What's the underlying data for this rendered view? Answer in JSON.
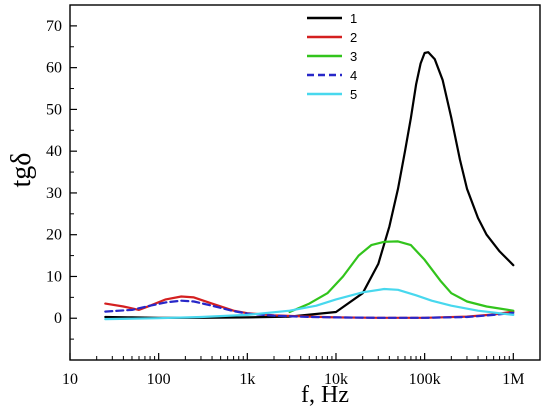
{
  "chart_data": {
    "type": "line",
    "xlabel": "f, Hz",
    "ylabel": "tgδ",
    "x_scale": "log",
    "xlim": [
      10,
      2000000
    ],
    "ylim": [
      -10,
      75
    ],
    "x_ticks": [
      {
        "value": 10,
        "label": "10"
      },
      {
        "value": 100,
        "label": "100"
      },
      {
        "value": 1000,
        "label": "1k"
      },
      {
        "value": 10000,
        "label": "10k"
      },
      {
        "value": 100000,
        "label": "100k"
      },
      {
        "value": 1000000,
        "label": "1M"
      }
    ],
    "y_ticks": [
      0,
      10,
      20,
      30,
      40,
      50,
      60,
      70
    ],
    "grid": false,
    "legend_position": "top-right",
    "series": [
      {
        "name": "1",
        "color": "#000000",
        "dash": false,
        "points": [
          [
            25,
            0.3
          ],
          [
            50,
            0.2
          ],
          [
            100,
            0.1
          ],
          [
            300,
            0.1
          ],
          [
            1000,
            0.2
          ],
          [
            3000,
            0.4
          ],
          [
            10000,
            1.5
          ],
          [
            20000,
            6
          ],
          [
            30000,
            13
          ],
          [
            40000,
            22
          ],
          [
            50000,
            31
          ],
          [
            60000,
            40
          ],
          [
            70000,
            48
          ],
          [
            80000,
            56
          ],
          [
            90000,
            61
          ],
          [
            100000,
            63.5
          ],
          [
            110000,
            63.7
          ],
          [
            130000,
            62
          ],
          [
            160000,
            57
          ],
          [
            200000,
            48
          ],
          [
            250000,
            38
          ],
          [
            300000,
            31
          ],
          [
            400000,
            24
          ],
          [
            500000,
            20
          ],
          [
            700000,
            16
          ],
          [
            1000000,
            12.7
          ]
        ]
      },
      {
        "name": "2",
        "color": "#d42020",
        "dash": false,
        "points": [
          [
            25,
            3.5
          ],
          [
            40,
            2.8
          ],
          [
            60,
            2.0
          ],
          [
            80,
            3.0
          ],
          [
            120,
            4.5
          ],
          [
            180,
            5.2
          ],
          [
            250,
            5.0
          ],
          [
            400,
            3.5
          ],
          [
            700,
            1.8
          ],
          [
            1000,
            1.2
          ],
          [
            2000,
            0.7
          ],
          [
            5000,
            0.4
          ],
          [
            10000,
            0.2
          ],
          [
            30000,
            0.1
          ],
          [
            100000,
            0.1
          ],
          [
            300000,
            0.4
          ],
          [
            600000,
            0.9
          ],
          [
            1000000,
            1.6
          ]
        ]
      },
      {
        "name": "3",
        "color": "#32c41c",
        "dash": false,
        "points": [
          [
            3000,
            1.5
          ],
          [
            5000,
            3.5
          ],
          [
            8000,
            6
          ],
          [
            12000,
            10
          ],
          [
            18000,
            15
          ],
          [
            25000,
            17.5
          ],
          [
            35000,
            18.3
          ],
          [
            50000,
            18.4
          ],
          [
            70000,
            17.5
          ],
          [
            100000,
            14
          ],
          [
            150000,
            9
          ],
          [
            200000,
            6
          ],
          [
            300000,
            4
          ],
          [
            500000,
            2.8
          ],
          [
            1000000,
            1.8
          ]
        ]
      },
      {
        "name": "4",
        "color": "#2727c8",
        "dash": true,
        "points": [
          [
            25,
            1.6
          ],
          [
            50,
            2.0
          ],
          [
            80,
            3.0
          ],
          [
            120,
            3.8
          ],
          [
            180,
            4.2
          ],
          [
            250,
            4.0
          ],
          [
            400,
            3.0
          ],
          [
            700,
            1.7
          ],
          [
            1000,
            1.1
          ],
          [
            2000,
            0.6
          ],
          [
            5000,
            0.3
          ],
          [
            10000,
            0.2
          ],
          [
            30000,
            0.1
          ],
          [
            100000,
            0.1
          ],
          [
            300000,
            0.3
          ],
          [
            600000,
            0.8
          ],
          [
            1000000,
            1.3
          ]
        ]
      },
      {
        "name": "5",
        "color": "#48d8ee",
        "dash": false,
        "points": [
          [
            25,
            -0.2
          ],
          [
            50,
            -0.1
          ],
          [
            100,
            0.0
          ],
          [
            300,
            0.3
          ],
          [
            1000,
            0.8
          ],
          [
            3000,
            1.8
          ],
          [
            6000,
            3
          ],
          [
            10000,
            4.5
          ],
          [
            20000,
            6.2
          ],
          [
            35000,
            7.0
          ],
          [
            50000,
            6.8
          ],
          [
            80000,
            5.5
          ],
          [
            120000,
            4.2
          ],
          [
            200000,
            3.0
          ],
          [
            400000,
            1.8
          ],
          [
            1000000,
            0.8
          ]
        ]
      }
    ]
  }
}
